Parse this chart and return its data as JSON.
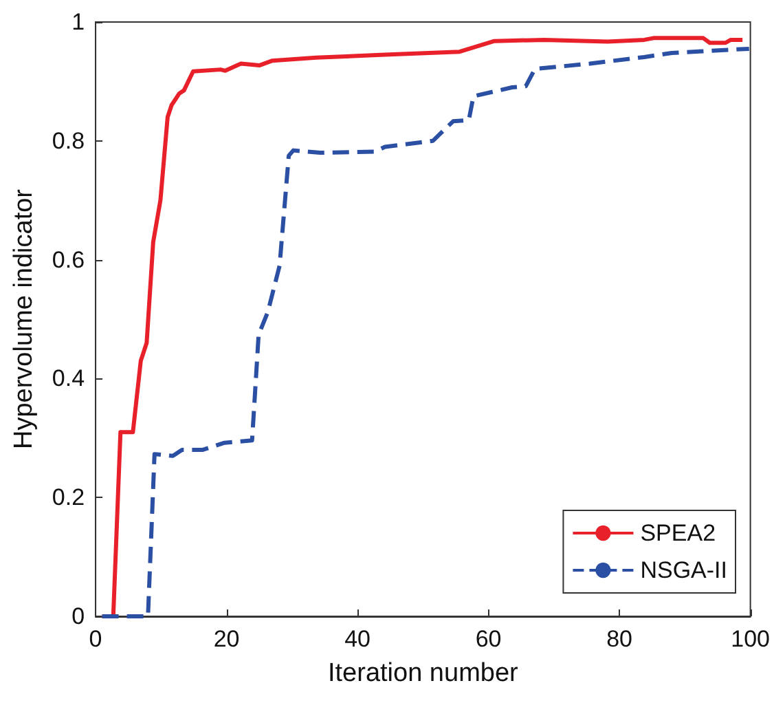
{
  "chart_data": {
    "type": "line",
    "xlabel": "Iteration number",
    "ylabel": "Hypervolume indicator",
    "xlim": [
      0,
      100
    ],
    "xticks": [
      0,
      20,
      40,
      60,
      80,
      100
    ],
    "ylim": [
      0,
      1
    ],
    "yticks": [
      0,
      0.2,
      0.4,
      0.6,
      0.8,
      1
    ],
    "grid": false,
    "legend": "bottom right",
    "marker": "none",
    "series": [
      {
        "name": "SPEA2",
        "color": "#e8202a",
        "line_style": "solid",
        "x": [
          1,
          2.7,
          3.8,
          5.7,
          6.9,
          7.8,
          8.8,
          9.9,
          11,
          11.6,
          12.8,
          13.5,
          14.9,
          19.1,
          19.8,
          22.2,
          25,
          27,
          33.7,
          44.2,
          55.6,
          60.9,
          68.5,
          78.2,
          83.8,
          85.2,
          92.8,
          93.8,
          96.2,
          97,
          98.8
        ],
        "values": [
          0,
          0,
          0.31,
          0.31,
          0.43,
          0.46,
          0.63,
          0.7,
          0.84,
          0.86,
          0.88,
          0.885,
          0.917,
          0.92,
          0.918,
          0.93,
          0.927,
          0.935,
          0.94,
          0.945,
          0.95,
          0.968,
          0.97,
          0.967,
          0.97,
          0.973,
          0.973,
          0.965,
          0.965,
          0.97,
          0.97
        ]
      },
      {
        "name": "NSGA-II",
        "color": "#2a4fa3",
        "line_style": "dashed",
        "x": [
          1,
          8,
          9,
          11.8,
          13.2,
          16.3,
          19.7,
          23.9,
          24.9,
          26.3,
          28.1,
          29.5,
          30.2,
          34.3,
          42.7,
          44.2,
          51.5,
          54.6,
          57,
          57.7,
          63.6,
          65.7,
          67.1,
          75.5,
          83.8,
          88,
          99.8
        ],
        "values": [
          0,
          0,
          0.273,
          0.27,
          0.28,
          0.28,
          0.292,
          0.296,
          0.474,
          0.512,
          0.59,
          0.775,
          0.784,
          0.78,
          0.782,
          0.79,
          0.8,
          0.833,
          0.835,
          0.875,
          0.89,
          0.892,
          0.921,
          0.93,
          0.941,
          0.948,
          0.955
        ]
      }
    ]
  }
}
